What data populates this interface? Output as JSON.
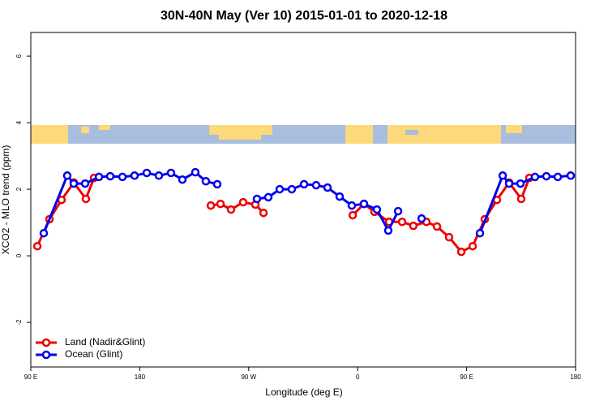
{
  "chart_data": {
    "type": "line",
    "title": "30N-40N May (Ver 10)   2015-01-01 to 2020-12-18",
    "x_label": "Longitude (deg E)",
    "y_label": "XCO2 - MLO trend (ppm)",
    "xlim": [
      90,
      540
    ],
    "xticks": [
      {
        "value": 90,
        "label": "90 E"
      },
      180,
      {
        "value": 270,
        "label": "90 W"
      },
      {
        "value": 360,
        "label": "0"
      },
      {
        "value": 450,
        "label": "90 E"
      },
      {
        "value": 540,
        "label": "180"
      }
    ],
    "ylim": [
      -3.34,
      6.71
    ],
    "yticks": [
      -2,
      0,
      2,
      4,
      6
    ],
    "legend": "bottom-left",
    "series": [
      {
        "name": "Land (Nadir&Glint)",
        "color": "#ee0000",
        "x": [
          95.4,
          105.4,
          115.4,
          125.5,
          135.5,
          142.2,
          null,
          238.7,
          246.7,
          255.4,
          265.4,
          275.5,
          282.2,
          null,
          355.9,
          365.2,
          373.9,
          386,
          396.7,
          406,
          416.8,
          425.5,
          435.5,
          445.6,
          455,
          465,
          475,
          485.1,
          495.1,
          501.8
        ],
        "values": [
          0.29,
          1.1,
          1.68,
          2.2,
          1.71,
          2.34,
          null,
          1.51,
          1.56,
          1.39,
          1.61,
          1.54,
          1.29,
          null,
          1.22,
          1.56,
          1.32,
          1.02,
          1.02,
          0.9,
          1.02,
          0.88,
          0.56,
          0.12,
          0.29,
          1.1,
          1.68,
          2.2,
          1.71,
          2.34
        ]
      },
      {
        "name": "Ocean (Glint)",
        "color": "#0000ee",
        "x": [
          100.7,
          120.1,
          125.5,
          134.9,
          146.3,
          155.6,
          165.7,
          175.7,
          185.8,
          195.8,
          205.8,
          215.2,
          225.9,
          234.6,
          244,
          null,
          276.8,
          286.2,
          295.6,
          305.6,
          315.7,
          325.7,
          335.1,
          345.1,
          355.2,
          365.2,
          375.9,
          385.3,
          393.4,
          null,
          412.8,
          null,
          461,
          479.8,
          485.1,
          494.5,
          506.5,
          515.9,
          525.3,
          536
        ],
        "values": [
          0.68,
          2.41,
          2.17,
          2.17,
          2.37,
          2.39,
          2.37,
          2.41,
          2.49,
          2.41,
          2.49,
          2.29,
          2.51,
          2.24,
          2.15,
          null,
          1.71,
          1.76,
          2.0,
          2.0,
          2.15,
          2.12,
          2.05,
          1.78,
          1.51,
          1.56,
          1.39,
          0.76,
          1.34,
          null,
          1.12,
          null,
          0.68,
          2.41,
          2.17,
          2.17,
          2.37,
          2.39,
          2.37,
          2.41
        ]
      }
    ]
  }
}
